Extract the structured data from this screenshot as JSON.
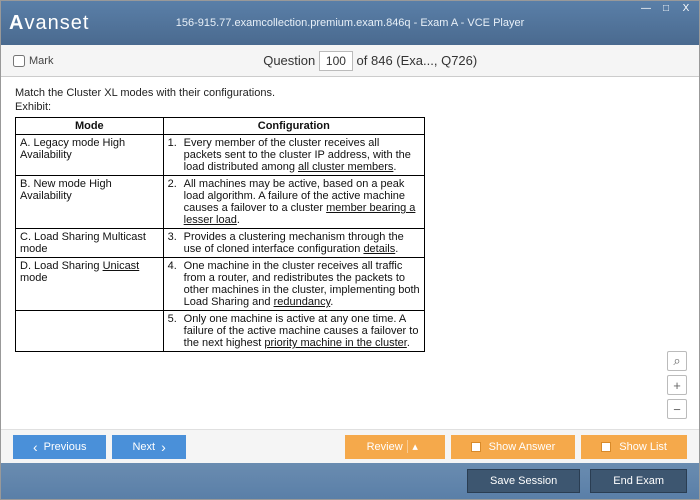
{
  "window": {
    "logo": "Avanset",
    "title": "156-915.77.examcollection.premium.exam.846q - Exam A - VCE Player"
  },
  "toolbar": {
    "mark_label": "Mark",
    "q_prefix": "Question",
    "q_current": "100",
    "q_suffix": " of 846 (Exa..., Q726)"
  },
  "question": {
    "text": "Match the Cluster XL modes with their configurations.",
    "exhibit_label": "Exhibit:"
  },
  "table": {
    "headers": {
      "mode": "Mode",
      "config": "Configuration"
    },
    "rows": [
      {
        "mode_letter": "A.",
        "mode": "Legacy mode High Availability",
        "num": "1.",
        "conf": "Every member of the cluster receives all packets sent to the cluster IP address, with the load distributed among all cluster members.",
        "underline_last": "all cluster members"
      },
      {
        "mode_letter": "B.",
        "mode": "New mode High Availability",
        "num": "2.",
        "conf": "All machines may be active, based on a peak load algorithm. A failure of the active machine causes a failover to a cluster member bearing a lesser load.",
        "underline_last": "member bearing a lesser load"
      },
      {
        "mode_letter": "C.",
        "mode": "Load Sharing Multicast mode",
        "num": "3.",
        "conf": "Provides a clustering mechanism through the use of cloned interface configuration details.",
        "underline_last": "details"
      },
      {
        "mode_letter": "D.",
        "mode": "Load Sharing ",
        "mode_underline": "Unicast",
        "mode_after": " mode",
        "num": "4.",
        "conf": "One machine in the cluster receives all traffic from a router, and redistributes the packets to other machines in the cluster, implementing both Load Sharing and redundancy.",
        "underline_last": "redundancy"
      },
      {
        "mode_letter": "",
        "mode": "",
        "num": "5.",
        "conf": "Only one machine is active at any one time. A failure of the active machine causes a failover to the next highest priority machine in the cluster.",
        "underline_last": "priority machine in the cluster"
      }
    ]
  },
  "buttons": {
    "previous": "Previous",
    "next": "Next",
    "review": "Review",
    "show_answer": "Show Answer",
    "show_list": "Show List",
    "save_session": "Save Session",
    "end_exam": "End Exam"
  },
  "zoom": {
    "reset": "⌕",
    "in": "+",
    "out": "−"
  },
  "win": {
    "min": "—",
    "max": "□",
    "close": "X"
  },
  "colors": {
    "titlebar_top": "#5a7fa8",
    "titlebar_bottom": "#4a6a8f",
    "blue_btn": "#4a90d9",
    "orange_btn": "#f5a94b",
    "dark_btn": "#3d5670"
  }
}
